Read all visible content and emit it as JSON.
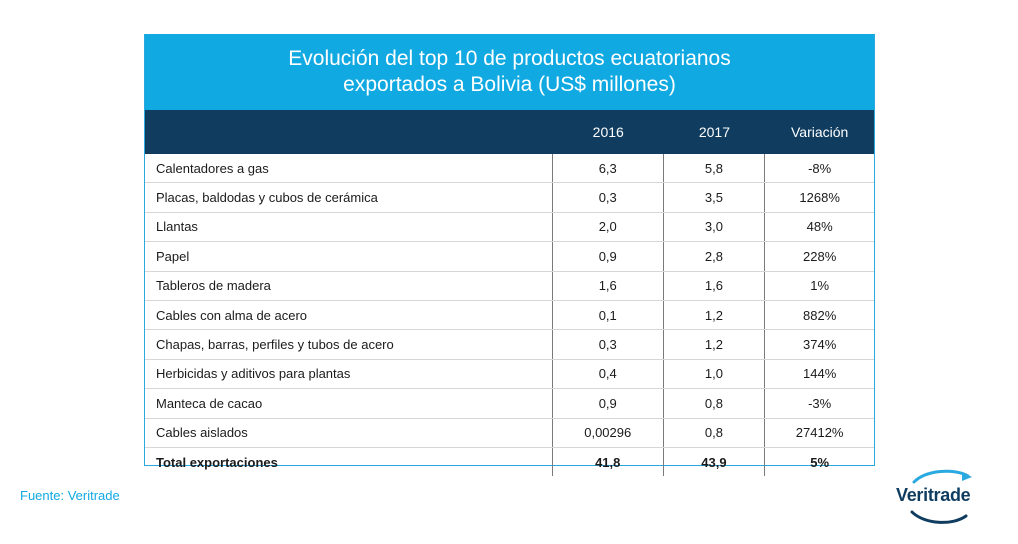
{
  "title": "Evolución del top 10 de productos ecuatorianos exportados a Bolivia (US$ millones)",
  "headers": [
    "",
    "2016",
    "2017",
    "Variación"
  ],
  "source": "Fuente: Veritrade",
  "brand": "Veritrade",
  "colors": {
    "accent": "#11a9e2",
    "header": "#0f3c5f"
  },
  "chart_data": {
    "type": "table",
    "title": "Evolución del top 10 de productos ecuatorianos exportados a Bolivia (US$ millones)",
    "columns": [
      "",
      "2016",
      "2017",
      "Variación"
    ],
    "rows": [
      [
        "Calentadores a gas",
        "6,3",
        "5,8",
        "-8%"
      ],
      [
        "Placas, baldodas y cubos de cerámica",
        "0,3",
        "3,5",
        "1268%"
      ],
      [
        "Llantas",
        "2,0",
        "3,0",
        "48%"
      ],
      [
        "Papel",
        "0,9",
        "2,8",
        "228%"
      ],
      [
        "Tableros de madera",
        "1,6",
        "1,6",
        "1%"
      ],
      [
        "Cables con alma de acero",
        "0,1",
        "1,2",
        "882%"
      ],
      [
        "Chapas, barras, perfiles y tubos de acero",
        "0,3",
        "1,2",
        "374%"
      ],
      [
        "Herbicidas y aditivos para plantas",
        "0,4",
        "1,0",
        "144%"
      ],
      [
        "Manteca de cacao",
        "0,9",
        "0,8",
        "-3%"
      ],
      [
        "Cables aislados",
        "0,00296",
        "0,8",
        "27412%"
      ],
      [
        "Total exportaciones",
        "41,8",
        "43,9",
        "5%"
      ]
    ]
  }
}
